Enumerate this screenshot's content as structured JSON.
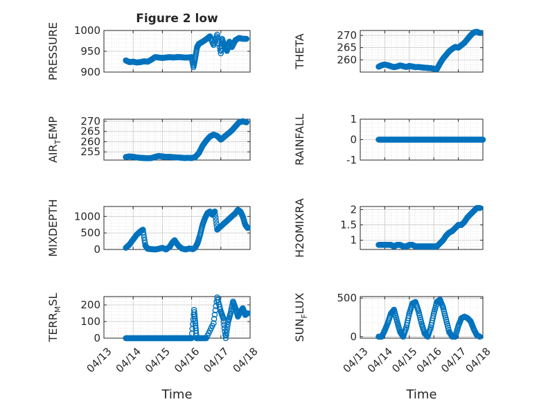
{
  "figure": {
    "title": "Figure 2 low",
    "xlabel": "Time"
  },
  "colors": {
    "marker": "#0072BD",
    "axis": "#262626",
    "grid": "#d9d9d9",
    "background": "#ffffff"
  },
  "chart_data": [
    {
      "type": "scatter",
      "id": "pressure",
      "title": "Figure 2 low",
      "ylabel": "PRESSURE",
      "ylabel_sub": "",
      "ylabel_post": "",
      "ylim": [
        900,
        1000
      ],
      "yticks": [
        900,
        950,
        1000
      ],
      "ytick_labels": [
        "900",
        "950",
        "1000"
      ],
      "xlim": [
        "04/13",
        "04/18"
      ],
      "xticks": [],
      "xlabel": "",
      "grid": true,
      "minor_grid": true,
      "x": [
        "04/13 18:00",
        "04/13 21:00",
        "04/14 00:00",
        "04/14 03:00",
        "04/14 06:00",
        "04/14 09:00",
        "04/14 12:00",
        "04/14 15:00",
        "04/14 18:00",
        "04/14 21:00",
        "04/15 00:00",
        "04/15 03:00",
        "04/15 06:00",
        "04/15 09:00",
        "04/15 12:00",
        "04/15 15:00",
        "04/15 18:00",
        "04/15 21:00",
        "04/16 00:00",
        "04/16 01:30",
        "04/16 03:00",
        "04/16 04:30",
        "04/16 06:00",
        "04/16 09:00",
        "04/16 12:00",
        "04/16 15:00",
        "04/16 18:00",
        "04/16 21:00",
        "04/17 00:00",
        "04/17 01:00",
        "04/17 03:00",
        "04/17 05:00",
        "04/17 07:00",
        "04/17 09:00",
        "04/17 12:00",
        "04/17 15:00",
        "04/17 18:00",
        "04/17 21:00"
      ],
      "y": [
        928,
        924,
        925,
        923,
        924,
        926,
        925,
        930,
        936,
        935,
        934,
        935,
        936,
        935,
        936,
        936,
        935,
        935,
        936,
        912,
        935,
        960,
        968,
        973,
        979,
        986,
        965,
        990,
        945,
        980,
        962,
        951,
        973,
        960,
        977,
        982,
        980,
        980
      ]
    },
    {
      "type": "scatter",
      "id": "theta",
      "ylabel": "THETA",
      "ylabel_sub": "",
      "ylabel_post": "",
      "ylim": [
        255,
        272
      ],
      "yticks": [
        260,
        265,
        270
      ],
      "ytick_labels": [
        "260",
        "265",
        "270"
      ],
      "xlim": [
        "04/13",
        "04/18"
      ],
      "xticks": [],
      "xlabel": "",
      "grid": true,
      "minor_grid": true,
      "x": [
        "04/13 18:00",
        "04/13 21:00",
        "04/14 00:00",
        "04/14 03:00",
        "04/14 06:00",
        "04/14 09:00",
        "04/14 12:00",
        "04/14 15:00",
        "04/14 18:00",
        "04/14 21:00",
        "04/15 00:00",
        "04/15 03:00",
        "04/15 06:00",
        "04/15 09:00",
        "04/15 12:00",
        "04/15 15:00",
        "04/15 18:00",
        "04/15 21:00",
        "04/16 00:00",
        "04/16 03:00",
        "04/16 06:00",
        "04/16 09:00",
        "04/16 12:00",
        "04/16 15:00",
        "04/16 18:00",
        "04/16 21:00",
        "04/17 00:00",
        "04/17 03:00",
        "04/17 06:00",
        "04/17 09:00",
        "04/17 12:00",
        "04/17 15:00",
        "04/17 18:00",
        "04/17 21:00"
      ],
      "y": [
        257.2,
        257.8,
        258.1,
        257.8,
        257.4,
        257.0,
        257.3,
        257.7,
        257.4,
        257.1,
        257.5,
        257.3,
        257.0,
        257.1,
        256.9,
        256.8,
        256.7,
        256.6,
        256.4,
        256.2,
        258.5,
        260.5,
        262.0,
        263.5,
        264.5,
        265.3,
        265.0,
        266.0,
        267.0,
        268.5,
        270.0,
        271.2,
        271.5,
        271.0
      ]
    },
    {
      "type": "scatter",
      "id": "air_temp",
      "ylabel": "AIR",
      "ylabel_sub": "T",
      "ylabel_post": "EMP",
      "ylim": [
        251,
        271
      ],
      "yticks": [
        255,
        260,
        265,
        270
      ],
      "ytick_labels": [
        "255",
        "260",
        "265",
        "270"
      ],
      "xlim": [
        "04/13",
        "04/18"
      ],
      "xticks": [],
      "xlabel": "",
      "grid": true,
      "minor_grid": true,
      "x": [
        "04/13 18:00",
        "04/13 21:00",
        "04/14 00:00",
        "04/14 03:00",
        "04/14 06:00",
        "04/14 09:00",
        "04/14 12:00",
        "04/14 15:00",
        "04/14 18:00",
        "04/14 21:00",
        "04/15 00:00",
        "04/15 03:00",
        "04/15 06:00",
        "04/15 09:00",
        "04/15 12:00",
        "04/15 15:00",
        "04/15 18:00",
        "04/15 21:00",
        "04/16 00:00",
        "04/16 03:00",
        "04/16 06:00",
        "04/16 09:00",
        "04/16 12:00",
        "04/16 15:00",
        "04/16 18:00",
        "04/16 21:00",
        "04/17 00:00",
        "04/17 03:00",
        "04/17 06:00",
        "04/17 09:00",
        "04/17 12:00",
        "04/17 15:00",
        "04/17 18:00",
        "04/17 21:00"
      ],
      "y": [
        252.5,
        252.8,
        252.6,
        252.3,
        252.1,
        252.0,
        251.9,
        252.0,
        252.6,
        253.0,
        252.8,
        252.5,
        252.6,
        252.4,
        252.3,
        252.2,
        252.0,
        252.1,
        252.0,
        252.5,
        254.5,
        258.0,
        260.5,
        262.5,
        263.5,
        262.8,
        261.0,
        262.5,
        264.0,
        265.5,
        267.5,
        269.5,
        270.0,
        269.5
      ]
    },
    {
      "type": "scatter",
      "id": "rainfall",
      "ylabel": "RAINFALL",
      "ylabel_sub": "",
      "ylabel_post": "",
      "ylim": [
        -1,
        1
      ],
      "yticks": [
        -1,
        0,
        1
      ],
      "ytick_labels": [
        "-1",
        "0",
        "1"
      ],
      "xlim": [
        "04/13",
        "04/18"
      ],
      "xticks": [],
      "xlabel": "",
      "grid": true,
      "minor_grid": true,
      "x": [
        "04/13 18:00",
        "04/13 21:00",
        "04/14 00:00",
        "04/14 03:00",
        "04/14 06:00",
        "04/14 09:00",
        "04/14 12:00",
        "04/14 15:00",
        "04/14 18:00",
        "04/14 21:00",
        "04/15 00:00",
        "04/15 03:00",
        "04/15 06:00",
        "04/15 09:00",
        "04/15 12:00",
        "04/15 15:00",
        "04/15 18:00",
        "04/15 21:00",
        "04/16 00:00",
        "04/16 03:00",
        "04/16 06:00",
        "04/16 09:00",
        "04/16 12:00",
        "04/16 15:00",
        "04/16 18:00",
        "04/16 21:00",
        "04/17 00:00",
        "04/17 03:00",
        "04/17 06:00",
        "04/17 09:00",
        "04/17 12:00",
        "04/17 15:00",
        "04/17 18:00",
        "04/17 21:00",
        "04/18 00:00"
      ],
      "y": [
        0,
        0,
        0,
        0,
        0,
        0,
        0,
        0,
        0,
        0,
        0,
        0,
        0,
        0,
        0,
        0,
        0,
        0,
        0,
        0,
        0,
        0,
        0,
        0,
        0,
        0,
        0,
        0,
        0,
        0,
        0,
        0,
        0,
        0,
        0
      ]
    },
    {
      "type": "scatter",
      "id": "mixdepth",
      "ylabel": "MIXDEPTH",
      "ylabel_sub": "",
      "ylabel_post": "",
      "ylim": [
        0,
        1300
      ],
      "yticks": [
        0,
        500,
        1000
      ],
      "ytick_labels": [
        "0",
        "500",
        "1000"
      ],
      "xlim": [
        "04/13",
        "04/18"
      ],
      "xticks": [],
      "xlabel": "",
      "grid": true,
      "minor_grid": true,
      "x": [
        "04/13 18:00",
        "04/13 21:00",
        "04/14 00:00",
        "04/14 03:00",
        "04/14 06:00",
        "04/14 08:00",
        "04/14 10:00",
        "04/14 12:00",
        "04/14 15:00",
        "04/14 18:00",
        "04/14 21:00",
        "04/15 00:00",
        "04/15 03:00",
        "04/15 06:00",
        "04/15 08:00",
        "04/15 10:00",
        "04/15 13:00",
        "04/15 16:00",
        "04/15 19:00",
        "04/15 22:00",
        "04/16 01:00",
        "04/16 03:00",
        "04/16 05:00",
        "04/16 07:00",
        "04/16 09:00",
        "04/16 11:00",
        "04/16 13:00",
        "04/16 15:00",
        "04/16 17:00",
        "04/16 19:00",
        "04/16 21:00",
        "04/17 00:00",
        "04/17 03:00",
        "04/17 06:00",
        "04/17 09:00",
        "04/17 12:00",
        "04/17 14:00",
        "04/17 16:00",
        "04/17 18:00",
        "04/17 20:00",
        "04/17 22:00"
      ],
      "y": [
        50,
        150,
        300,
        450,
        550,
        600,
        120,
        20,
        10,
        0,
        20,
        50,
        0,
        80,
        200,
        280,
        120,
        30,
        0,
        30,
        10,
        60,
        200,
        450,
        750,
        950,
        1100,
        1150,
        1050,
        1150,
        600,
        700,
        800,
        900,
        1000,
        1100,
        1200,
        1150,
        1000,
        750,
        650
      ]
    },
    {
      "type": "scatter",
      "id": "h2omixra",
      "ylabel": "H2OMIXRA",
      "ylabel_sub": "",
      "ylabel_post": "",
      "ylim": [
        0.7,
        2.1
      ],
      "yticks": [
        1,
        1.5,
        2
      ],
      "ytick_labels": [
        "1",
        "1.5",
        "2"
      ],
      "xlim": [
        "04/13",
        "04/18"
      ],
      "xticks": [],
      "xlabel": "",
      "grid": true,
      "minor_grid": true,
      "x": [
        "04/13 18:00",
        "04/13 21:00",
        "04/14 00:00",
        "04/14 03:00",
        "04/14 06:00",
        "04/14 09:00",
        "04/14 12:00",
        "04/14 15:00",
        "04/14 18:00",
        "04/14 21:00",
        "04/15 00:00",
        "04/15 03:00",
        "04/15 06:00",
        "04/15 09:00",
        "04/15 12:00",
        "04/15 15:00",
        "04/15 18:00",
        "04/15 21:00",
        "04/16 00:00",
        "04/16 03:00",
        "04/16 06:00",
        "04/16 09:00",
        "04/16 12:00",
        "04/16 15:00",
        "04/16 18:00",
        "04/16 21:00",
        "04/17 00:00",
        "04/17 03:00",
        "04/17 06:00",
        "04/17 09:00",
        "04/17 12:00",
        "04/17 15:00",
        "04/17 18:00",
        "04/17 21:00"
      ],
      "y": [
        0.85,
        0.85,
        0.85,
        0.85,
        0.85,
        0.8,
        0.85,
        0.85,
        0.8,
        0.8,
        0.85,
        0.85,
        0.8,
        0.8,
        0.8,
        0.8,
        0.8,
        0.8,
        0.8,
        0.8,
        0.9,
        1.0,
        1.15,
        1.25,
        1.3,
        1.4,
        1.5,
        1.5,
        1.6,
        1.75,
        1.85,
        1.95,
        2.05,
        2.05
      ]
    },
    {
      "type": "scatter",
      "id": "terr_msl",
      "ylabel": "TERR",
      "ylabel_sub": "M",
      "ylabel_post": "SL",
      "ylim": [
        0,
        250
      ],
      "yticks": [
        0,
        100,
        200
      ],
      "ytick_labels": [
        "0",
        "100",
        "200"
      ],
      "xlim": [
        "04/13",
        "04/18"
      ],
      "xticks": [
        "04/13",
        "04/14",
        "04/15",
        "04/16",
        "04/17",
        "04/18"
      ],
      "xtick_labels": [
        "04/13",
        "04/14",
        "04/15",
        "04/16",
        "04/17",
        "04/18"
      ],
      "xlabel": "Time",
      "grid": true,
      "minor_grid": true,
      "x": [
        "04/13 18:00",
        "04/13 21:00",
        "04/14 00:00",
        "04/14 03:00",
        "04/14 06:00",
        "04/14 09:00",
        "04/14 12:00",
        "04/14 15:00",
        "04/14 18:00",
        "04/14 21:00",
        "04/15 00:00",
        "04/15 03:00",
        "04/15 06:00",
        "04/15 09:00",
        "04/15 12:00",
        "04/15 15:00",
        "04/15 18:00",
        "04/15 21:00",
        "04/16 00:00",
        "04/16 02:00",
        "04/16 03:00",
        "04/16 04:00",
        "04/16 06:00",
        "04/16 09:00",
        "04/16 12:00",
        "04/16 18:00",
        "04/16 21:00",
        "04/17 00:00",
        "04/17 02:00",
        "04/17 04:00",
        "04/17 06:00",
        "04/17 08:00",
        "04/17 10:00",
        "04/17 12:00",
        "04/17 14:00",
        "04/17 16:00",
        "04/17 18:00",
        "04/17 20:00",
        "04/17 22:00"
      ],
      "y": [
        0,
        0,
        0,
        0,
        0,
        0,
        0,
        0,
        0,
        0,
        0,
        0,
        0,
        0,
        0,
        0,
        0,
        0,
        0,
        170,
        90,
        0,
        0,
        0,
        0,
        90,
        245,
        160,
        120,
        0,
        100,
        150,
        220,
        180,
        130,
        160,
        180,
        140,
        150
      ]
    },
    {
      "type": "scatter",
      "id": "sun_flux",
      "ylabel": "SUN",
      "ylabel_sub": "F",
      "ylabel_post": "LUX",
      "ylim": [
        -20,
        520
      ],
      "yticks": [
        0,
        500
      ],
      "ytick_labels": [
        "0",
        "500"
      ],
      "xlim": [
        "04/13",
        "04/18"
      ],
      "xticks": [
        "04/13",
        "04/14",
        "04/15",
        "04/16",
        "04/17",
        "04/18"
      ],
      "xtick_labels": [
        "04/13",
        "04/14",
        "04/15",
        "04/16",
        "04/17",
        "04/18"
      ],
      "xlabel": "Time",
      "grid": true,
      "minor_grid": true,
      "x": [
        "04/13 18:00",
        "04/13 21:00",
        "04/14 00:00",
        "04/14 03:00",
        "04/14 06:00",
        "04/14 09:00",
        "04/14 12:00",
        "04/14 15:00",
        "04/14 18:00",
        "04/14 21:00",
        "04/15 00:00",
        "04/15 03:00",
        "04/15 06:00",
        "04/15 09:00",
        "04/15 12:00",
        "04/15 15:00",
        "04/15 18:00",
        "04/15 21:00",
        "04/16 00:00",
        "04/16 03:00",
        "04/16 06:00",
        "04/16 09:00",
        "04/16 12:00",
        "04/16 15:00",
        "04/16 18:00",
        "04/16 21:00",
        "04/17 00:00",
        "04/17 03:00",
        "04/17 06:00",
        "04/17 09:00",
        "04/17 12:00",
        "04/17 15:00",
        "04/17 18:00",
        "04/17 21:00"
      ],
      "y": [
        0,
        0,
        80,
        180,
        300,
        350,
        200,
        60,
        0,
        120,
        300,
        430,
        450,
        330,
        170,
        40,
        0,
        120,
        300,
        450,
        480,
        380,
        220,
        60,
        0,
        0,
        140,
        240,
        260,
        240,
        200,
        100,
        20,
        0
      ]
    }
  ]
}
